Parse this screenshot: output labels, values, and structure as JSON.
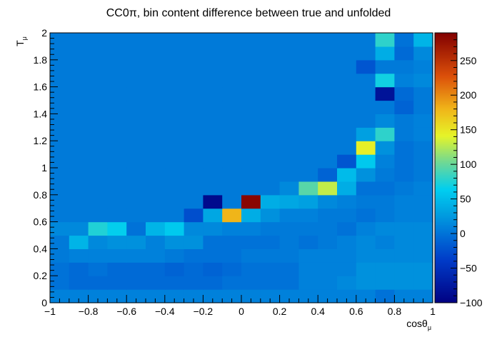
{
  "chart_data": {
    "type": "heatmap",
    "title": "CC0π, bin content difference between true and unfolded",
    "xlabel": "cosθ",
    "xlabel_sub": "μ",
    "ylabel": "T",
    "ylabel_sub": "μ",
    "xlim": [
      -1,
      1
    ],
    "ylim": [
      0,
      2
    ],
    "x_ticks": [
      -1,
      -0.8,
      -0.6,
      -0.4,
      -0.2,
      0,
      0.2,
      0.4,
      0.6,
      0.8,
      1
    ],
    "x_tick_labels": [
      "−1",
      "−0.8",
      "−0.6",
      "−0.4",
      "−0.2",
      "0",
      "0.2",
      "0.4",
      "0.6",
      "0.8",
      "1"
    ],
    "y_ticks": [
      0,
      0.2,
      0.4,
      0.6,
      0.8,
      1,
      1.2,
      1.4,
      1.6,
      1.8,
      2
    ],
    "y_tick_labels": [
      "0",
      "0.2",
      "0.4",
      "0.6",
      "0.8",
      "1",
      "1.2",
      "1.4",
      "1.6",
      "1.8",
      "2"
    ],
    "z_range": [
      -100,
      290
    ],
    "z_ticks": [
      -100,
      -50,
      0,
      50,
      100,
      150,
      200,
      250
    ],
    "z_tick_labels": [
      "−100",
      "−50",
      "0",
      "50",
      "100",
      "150",
      "200",
      "250"
    ],
    "n_x_bins": 20,
    "n_y_bins": 20,
    "x_bins": [
      -1,
      1
    ],
    "y_bins": [
      0,
      2
    ],
    "default_value": 5,
    "cells": [
      {
        "ix": 0,
        "iy": 0,
        "v": 10
      },
      {
        "ix": 1,
        "iy": 0,
        "v": 10
      },
      {
        "ix": 2,
        "iy": 0,
        "v": 10
      },
      {
        "ix": 3,
        "iy": 0,
        "v": 10
      },
      {
        "ix": 4,
        "iy": 0,
        "v": 10
      },
      {
        "ix": 5,
        "iy": 0,
        "v": 10
      },
      {
        "ix": 6,
        "iy": 0,
        "v": 10
      },
      {
        "ix": 7,
        "iy": 0,
        "v": 10
      },
      {
        "ix": 8,
        "iy": 0,
        "v": 10
      },
      {
        "ix": 9,
        "iy": 0,
        "v": 10
      },
      {
        "ix": 10,
        "iy": 0,
        "v": 10
      },
      {
        "ix": 11,
        "iy": 0,
        "v": 10
      },
      {
        "ix": 12,
        "iy": 0,
        "v": 10
      },
      {
        "ix": 13,
        "iy": 0,
        "v": 10
      },
      {
        "ix": 14,
        "iy": 0,
        "v": 10
      },
      {
        "ix": 15,
        "iy": 0,
        "v": 10
      },
      {
        "ix": 16,
        "iy": 0,
        "v": 10
      },
      {
        "ix": 17,
        "iy": 0,
        "v": 0
      },
      {
        "ix": 18,
        "iy": 0,
        "v": 10
      },
      {
        "ix": 19,
        "iy": 0,
        "v": 10
      },
      {
        "ix": 0,
        "iy": 1,
        "v": 0
      },
      {
        "ix": 1,
        "iy": 1,
        "v": -5
      },
      {
        "ix": 2,
        "iy": 1,
        "v": -5
      },
      {
        "ix": 3,
        "iy": 1,
        "v": -5
      },
      {
        "ix": 4,
        "iy": 1,
        "v": -5
      },
      {
        "ix": 5,
        "iy": 1,
        "v": -5
      },
      {
        "ix": 6,
        "iy": 1,
        "v": -5
      },
      {
        "ix": 7,
        "iy": 1,
        "v": -5
      },
      {
        "ix": 8,
        "iy": 1,
        "v": -5
      },
      {
        "ix": 9,
        "iy": 1,
        "v": 0
      },
      {
        "ix": 10,
        "iy": 1,
        "v": 0
      },
      {
        "ix": 11,
        "iy": 1,
        "v": 0
      },
      {
        "ix": 12,
        "iy": 1,
        "v": 0
      },
      {
        "ix": 13,
        "iy": 1,
        "v": 10
      },
      {
        "ix": 14,
        "iy": 1,
        "v": 10
      },
      {
        "ix": 15,
        "iy": 1,
        "v": 15
      },
      {
        "ix": 16,
        "iy": 1,
        "v": 20
      },
      {
        "ix": 17,
        "iy": 1,
        "v": 20
      },
      {
        "ix": 18,
        "iy": 1,
        "v": 20
      },
      {
        "ix": 19,
        "iy": 1,
        "v": 20
      },
      {
        "ix": 0,
        "iy": 2,
        "v": 0
      },
      {
        "ix": 1,
        "iy": 2,
        "v": -5
      },
      {
        "ix": 2,
        "iy": 2,
        "v": 0
      },
      {
        "ix": 3,
        "iy": 2,
        "v": -5
      },
      {
        "ix": 4,
        "iy": 2,
        "v": -5
      },
      {
        "ix": 5,
        "iy": 2,
        "v": -5
      },
      {
        "ix": 6,
        "iy": 2,
        "v": -10
      },
      {
        "ix": 7,
        "iy": 2,
        "v": -5
      },
      {
        "ix": 8,
        "iy": 2,
        "v": -10
      },
      {
        "ix": 9,
        "iy": 2,
        "v": -5
      },
      {
        "ix": 10,
        "iy": 2,
        "v": 0
      },
      {
        "ix": 11,
        "iy": 2,
        "v": 0
      },
      {
        "ix": 12,
        "iy": 2,
        "v": 0
      },
      {
        "ix": 13,
        "iy": 2,
        "v": 10
      },
      {
        "ix": 14,
        "iy": 2,
        "v": 10
      },
      {
        "ix": 15,
        "iy": 2,
        "v": 10
      },
      {
        "ix": 16,
        "iy": 2,
        "v": 20
      },
      {
        "ix": 17,
        "iy": 2,
        "v": 20
      },
      {
        "ix": 18,
        "iy": 2,
        "v": 20
      },
      {
        "ix": 19,
        "iy": 2,
        "v": 20
      },
      {
        "ix": 0,
        "iy": 3,
        "v": 5
      },
      {
        "ix": 1,
        "iy": 3,
        "v": 10
      },
      {
        "ix": 2,
        "iy": 3,
        "v": 10
      },
      {
        "ix": 3,
        "iy": 3,
        "v": 10
      },
      {
        "ix": 4,
        "iy": 3,
        "v": 10
      },
      {
        "ix": 5,
        "iy": 3,
        "v": 10
      },
      {
        "ix": 6,
        "iy": 3,
        "v": 5
      },
      {
        "ix": 7,
        "iy": 3,
        "v": 0
      },
      {
        "ix": 8,
        "iy": 3,
        "v": 0
      },
      {
        "ix": 9,
        "iy": 3,
        "v": 0
      },
      {
        "ix": 10,
        "iy": 3,
        "v": 5
      },
      {
        "ix": 11,
        "iy": 3,
        "v": 5
      },
      {
        "ix": 12,
        "iy": 3,
        "v": 5
      },
      {
        "ix": 13,
        "iy": 3,
        "v": 10
      },
      {
        "ix": 14,
        "iy": 3,
        "v": 10
      },
      {
        "ix": 15,
        "iy": 3,
        "v": 10
      },
      {
        "ix": 16,
        "iy": 3,
        "v": 15
      },
      {
        "ix": 17,
        "iy": 3,
        "v": 15
      },
      {
        "ix": 18,
        "iy": 3,
        "v": 15
      },
      {
        "ix": 19,
        "iy": 3,
        "v": 15
      },
      {
        "ix": 0,
        "iy": 4,
        "v": 5
      },
      {
        "ix": 1,
        "iy": 4,
        "v": 45
      },
      {
        "ix": 2,
        "iy": 4,
        "v": 15
      },
      {
        "ix": 3,
        "iy": 4,
        "v": 20
      },
      {
        "ix": 4,
        "iy": 4,
        "v": 20
      },
      {
        "ix": 5,
        "iy": 4,
        "v": 10
      },
      {
        "ix": 6,
        "iy": 4,
        "v": 20
      },
      {
        "ix": 7,
        "iy": 4,
        "v": 20
      },
      {
        "ix": 8,
        "iy": 4,
        "v": 0
      },
      {
        "ix": 9,
        "iy": 4,
        "v": 0
      },
      {
        "ix": 10,
        "iy": 4,
        "v": 0
      },
      {
        "ix": 11,
        "iy": 4,
        "v": 0
      },
      {
        "ix": 12,
        "iy": 4,
        "v": 5
      },
      {
        "ix": 13,
        "iy": 4,
        "v": 0
      },
      {
        "ix": 14,
        "iy": 4,
        "v": 5
      },
      {
        "ix": 15,
        "iy": 4,
        "v": 10
      },
      {
        "ix": 16,
        "iy": 4,
        "v": 15
      },
      {
        "ix": 17,
        "iy": 4,
        "v": 10
      },
      {
        "ix": 18,
        "iy": 4,
        "v": 15
      },
      {
        "ix": 19,
        "iy": 4,
        "v": 15
      },
      {
        "ix": 0,
        "iy": 5,
        "v": 15
      },
      {
        "ix": 1,
        "iy": 5,
        "v": 15
      },
      {
        "ix": 2,
        "iy": 5,
        "v": 75
      },
      {
        "ix": 3,
        "iy": 5,
        "v": 65
      },
      {
        "ix": 4,
        "iy": 5,
        "v": 0
      },
      {
        "ix": 5,
        "iy": 5,
        "v": 45
      },
      {
        "ix": 6,
        "iy": 5,
        "v": 60
      },
      {
        "ix": 7,
        "iy": 5,
        "v": 15
      },
      {
        "ix": 8,
        "iy": 5,
        "v": 15
      },
      {
        "ix": 9,
        "iy": 5,
        "v": 10
      },
      {
        "ix": 10,
        "iy": 5,
        "v": 10
      },
      {
        "ix": 11,
        "iy": 5,
        "v": 5
      },
      {
        "ix": 12,
        "iy": 5,
        "v": 5
      },
      {
        "ix": 13,
        "iy": 5,
        "v": 5
      },
      {
        "ix": 14,
        "iy": 5,
        "v": 5
      },
      {
        "ix": 15,
        "iy": 5,
        "v": 0
      },
      {
        "ix": 16,
        "iy": 5,
        "v": 10
      },
      {
        "ix": 17,
        "iy": 5,
        "v": 15
      },
      {
        "ix": 18,
        "iy": 5,
        "v": 15
      },
      {
        "ix": 19,
        "iy": 5,
        "v": 15
      },
      {
        "ix": 7,
        "iy": 6,
        "v": -25
      },
      {
        "ix": 8,
        "iy": 6,
        "v": 35
      },
      {
        "ix": 9,
        "iy": 6,
        "v": 180
      },
      {
        "ix": 10,
        "iy": 6,
        "v": 40
      },
      {
        "ix": 11,
        "iy": 6,
        "v": 20
      },
      {
        "ix": 12,
        "iy": 6,
        "v": 10
      },
      {
        "ix": 13,
        "iy": 6,
        "v": 10
      },
      {
        "ix": 14,
        "iy": 6,
        "v": 5
      },
      {
        "ix": 15,
        "iy": 6,
        "v": 5
      },
      {
        "ix": 16,
        "iy": 6,
        "v": 0
      },
      {
        "ix": 17,
        "iy": 6,
        "v": 5
      },
      {
        "ix": 18,
        "iy": 6,
        "v": 10
      },
      {
        "ix": 19,
        "iy": 6,
        "v": 10
      },
      {
        "ix": 8,
        "iy": 7,
        "v": -90
      },
      {
        "ix": 9,
        "iy": 7,
        "v": 5
      },
      {
        "ix": 10,
        "iy": 7,
        "v": 285
      },
      {
        "ix": 11,
        "iy": 7,
        "v": 40
      },
      {
        "ix": 12,
        "iy": 7,
        "v": 35
      },
      {
        "ix": 13,
        "iy": 7,
        "v": 30
      },
      {
        "ix": 14,
        "iy": 7,
        "v": 15
      },
      {
        "ix": 15,
        "iy": 7,
        "v": 10
      },
      {
        "ix": 16,
        "iy": 7,
        "v": 5
      },
      {
        "ix": 17,
        "iy": 7,
        "v": 5
      },
      {
        "ix": 18,
        "iy": 7,
        "v": 10
      },
      {
        "ix": 19,
        "iy": 7,
        "v": 10
      },
      {
        "ix": 12,
        "iy": 8,
        "v": 15
      },
      {
        "ix": 13,
        "iy": 8,
        "v": 95
      },
      {
        "ix": 14,
        "iy": 8,
        "v": 130
      },
      {
        "ix": 15,
        "iy": 8,
        "v": 40
      },
      {
        "ix": 16,
        "iy": 8,
        "v": 0
      },
      {
        "ix": 17,
        "iy": 8,
        "v": 0
      },
      {
        "ix": 18,
        "iy": 8,
        "v": 5
      },
      {
        "ix": 19,
        "iy": 8,
        "v": 10
      },
      {
        "ix": 14,
        "iy": 9,
        "v": -10
      },
      {
        "ix": 15,
        "iy": 9,
        "v": 50
      },
      {
        "ix": 16,
        "iy": 9,
        "v": 20
      },
      {
        "ix": 17,
        "iy": 9,
        "v": 5
      },
      {
        "ix": 18,
        "iy": 9,
        "v": 0
      },
      {
        "ix": 19,
        "iy": 9,
        "v": 5
      },
      {
        "ix": 15,
        "iy": 10,
        "v": -20
      },
      {
        "ix": 16,
        "iy": 10,
        "v": 60
      },
      {
        "ix": 17,
        "iy": 10,
        "v": 10
      },
      {
        "ix": 18,
        "iy": 10,
        "v": 0
      },
      {
        "ix": 19,
        "iy": 10,
        "v": 5
      },
      {
        "ix": 16,
        "iy": 11,
        "v": 145
      },
      {
        "ix": 17,
        "iy": 11,
        "v": 20
      },
      {
        "ix": 18,
        "iy": 11,
        "v": 0
      },
      {
        "ix": 19,
        "iy": 11,
        "v": 5
      },
      {
        "ix": 16,
        "iy": 12,
        "v": 30
      },
      {
        "ix": 17,
        "iy": 12,
        "v": 80
      },
      {
        "ix": 18,
        "iy": 12,
        "v": 5
      },
      {
        "ix": 19,
        "iy": 12,
        "v": 10
      },
      {
        "ix": 17,
        "iy": 13,
        "v": 15
      },
      {
        "ix": 18,
        "iy": 13,
        "v": 5
      },
      {
        "ix": 19,
        "iy": 13,
        "v": 10
      },
      {
        "ix": 18,
        "iy": 14,
        "v": -10
      },
      {
        "ix": 19,
        "iy": 14,
        "v": 5
      },
      {
        "ix": 17,
        "iy": 15,
        "v": -80
      },
      {
        "ix": 18,
        "iy": 15,
        "v": -5
      },
      {
        "ix": 19,
        "iy": 15,
        "v": 5
      },
      {
        "ix": 17,
        "iy": 16,
        "v": 70
      },
      {
        "ix": 18,
        "iy": 16,
        "v": 10
      },
      {
        "ix": 19,
        "iy": 16,
        "v": 15
      },
      {
        "ix": 16,
        "iy": 17,
        "v": -20
      },
      {
        "ix": 17,
        "iy": 17,
        "v": 5
      },
      {
        "ix": 18,
        "iy": 17,
        "v": 5
      },
      {
        "ix": 19,
        "iy": 17,
        "v": 10
      },
      {
        "ix": 17,
        "iy": 18,
        "v": 40
      },
      {
        "ix": 18,
        "iy": 18,
        "v": -5
      },
      {
        "ix": 19,
        "iy": 18,
        "v": 15
      },
      {
        "ix": 17,
        "iy": 19,
        "v": 80
      },
      {
        "ix": 18,
        "iy": 19,
        "v": 0
      },
      {
        "ix": 19,
        "iy": 19,
        "v": 45
      }
    ]
  },
  "colors": {
    "background": "#ffffff",
    "axis": "#000000"
  }
}
